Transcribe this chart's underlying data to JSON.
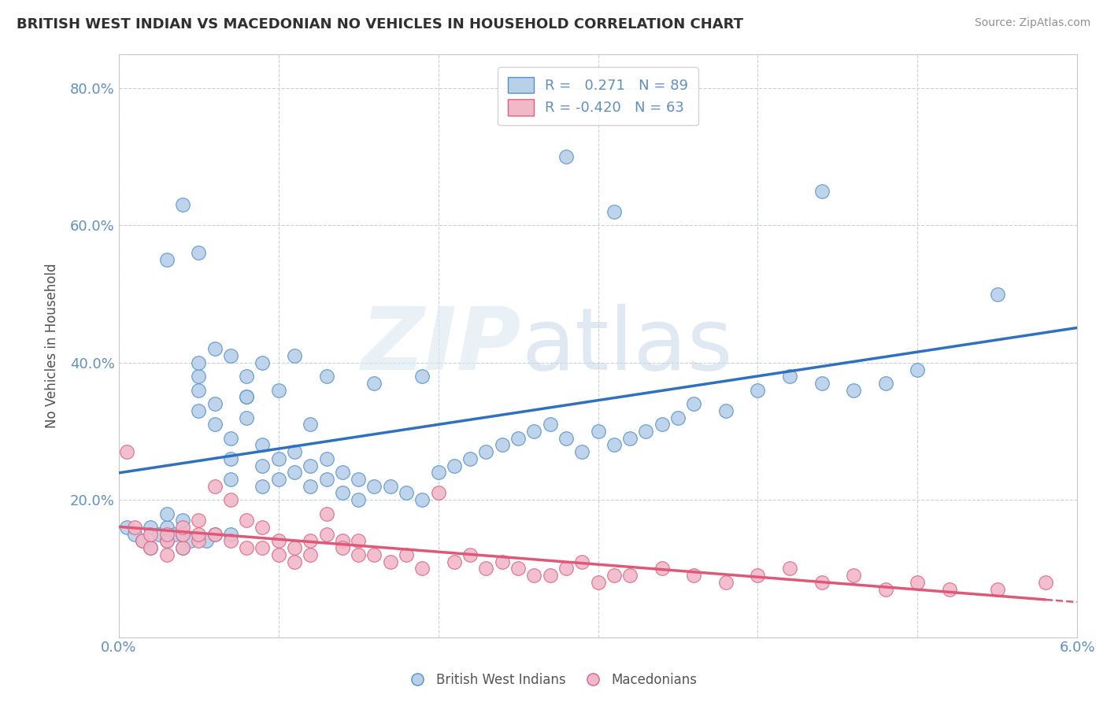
{
  "title": "BRITISH WEST INDIAN VS MACEDONIAN NO VEHICLES IN HOUSEHOLD CORRELATION CHART",
  "source": "Source: ZipAtlas.com",
  "ylabel": "No Vehicles in Household",
  "xlim": [
    0.0,
    0.06
  ],
  "ylim": [
    0.0,
    0.85
  ],
  "yticks": [
    0.0,
    0.2,
    0.4,
    0.6,
    0.8
  ],
  "yticklabels": [
    "",
    "20.0%",
    "40.0%",
    "60.0%",
    "80.0%"
  ],
  "xtick_vals": [
    0.0,
    0.01,
    0.02,
    0.03,
    0.04,
    0.05,
    0.06
  ],
  "xticklabels": [
    "0.0%",
    "",
    "",
    "",
    "",
    "",
    "6.0%"
  ],
  "legend1_r": "0.271",
  "legend1_n": "89",
  "legend2_r": "-0.420",
  "legend2_n": "63",
  "blue_fill": "#b8d0e8",
  "blue_edge": "#5090d0",
  "pink_fill": "#f0b8c8",
  "pink_edge": "#e06080",
  "blue_line": "#3070c0",
  "pink_line": "#e05878",
  "grid_color": "#c8d0dc",
  "title_color": "#303030",
  "tick_color": "#6090c0",
  "ylabel_color": "#505050",
  "blue_x": [
    0.0005,
    0.001,
    0.0015,
    0.002,
    0.002,
    0.0025,
    0.003,
    0.003,
    0.003,
    0.0035,
    0.004,
    0.004,
    0.004,
    0.0045,
    0.005,
    0.005,
    0.005,
    0.005,
    0.0055,
    0.006,
    0.006,
    0.006,
    0.007,
    0.007,
    0.007,
    0.007,
    0.008,
    0.008,
    0.008,
    0.009,
    0.009,
    0.009,
    0.01,
    0.01,
    0.011,
    0.011,
    0.012,
    0.012,
    0.013,
    0.013,
    0.014,
    0.014,
    0.015,
    0.015,
    0.016,
    0.017,
    0.018,
    0.019,
    0.02,
    0.021,
    0.022,
    0.023,
    0.024,
    0.025,
    0.026,
    0.027,
    0.028,
    0.029,
    0.03,
    0.031,
    0.032,
    0.033,
    0.034,
    0.035,
    0.036,
    0.038,
    0.04,
    0.042,
    0.044,
    0.046,
    0.048,
    0.05,
    0.003,
    0.004,
    0.005,
    0.006,
    0.007,
    0.008,
    0.009,
    0.01,
    0.011,
    0.012,
    0.013,
    0.016,
    0.019,
    0.028,
    0.031,
    0.044,
    0.055
  ],
  "blue_y": [
    0.16,
    0.15,
    0.14,
    0.13,
    0.16,
    0.15,
    0.14,
    0.16,
    0.18,
    0.15,
    0.13,
    0.15,
    0.17,
    0.14,
    0.38,
    0.4,
    0.36,
    0.33,
    0.14,
    0.31,
    0.34,
    0.15,
    0.29,
    0.26,
    0.23,
    0.15,
    0.38,
    0.35,
    0.32,
    0.28,
    0.25,
    0.22,
    0.26,
    0.23,
    0.27,
    0.24,
    0.25,
    0.22,
    0.26,
    0.23,
    0.24,
    0.21,
    0.23,
    0.2,
    0.22,
    0.22,
    0.21,
    0.2,
    0.24,
    0.25,
    0.26,
    0.27,
    0.28,
    0.29,
    0.3,
    0.31,
    0.29,
    0.27,
    0.3,
    0.28,
    0.29,
    0.3,
    0.31,
    0.32,
    0.34,
    0.33,
    0.36,
    0.38,
    0.37,
    0.36,
    0.37,
    0.39,
    0.55,
    0.63,
    0.56,
    0.42,
    0.41,
    0.35,
    0.4,
    0.36,
    0.41,
    0.31,
    0.38,
    0.37,
    0.38,
    0.7,
    0.62,
    0.65,
    0.5
  ],
  "pink_x": [
    0.0005,
    0.001,
    0.0015,
    0.002,
    0.002,
    0.003,
    0.003,
    0.003,
    0.004,
    0.004,
    0.004,
    0.005,
    0.005,
    0.005,
    0.006,
    0.006,
    0.007,
    0.007,
    0.008,
    0.008,
    0.009,
    0.009,
    0.01,
    0.01,
    0.011,
    0.011,
    0.012,
    0.012,
    0.013,
    0.013,
    0.014,
    0.014,
    0.015,
    0.015,
    0.016,
    0.017,
    0.018,
    0.019,
    0.02,
    0.021,
    0.022,
    0.023,
    0.024,
    0.025,
    0.026,
    0.027,
    0.028,
    0.029,
    0.03,
    0.031,
    0.032,
    0.034,
    0.036,
    0.038,
    0.04,
    0.042,
    0.044,
    0.046,
    0.048,
    0.05,
    0.052,
    0.055,
    0.058
  ],
  "pink_y": [
    0.27,
    0.16,
    0.14,
    0.13,
    0.15,
    0.12,
    0.14,
    0.15,
    0.13,
    0.15,
    0.16,
    0.14,
    0.15,
    0.17,
    0.15,
    0.22,
    0.14,
    0.2,
    0.13,
    0.17,
    0.13,
    0.16,
    0.12,
    0.14,
    0.13,
    0.11,
    0.14,
    0.12,
    0.18,
    0.15,
    0.14,
    0.13,
    0.14,
    0.12,
    0.12,
    0.11,
    0.12,
    0.1,
    0.21,
    0.11,
    0.12,
    0.1,
    0.11,
    0.1,
    0.09,
    0.09,
    0.1,
    0.11,
    0.08,
    0.09,
    0.09,
    0.1,
    0.09,
    0.08,
    0.09,
    0.1,
    0.08,
    0.09,
    0.07,
    0.08,
    0.07,
    0.07,
    0.08
  ]
}
